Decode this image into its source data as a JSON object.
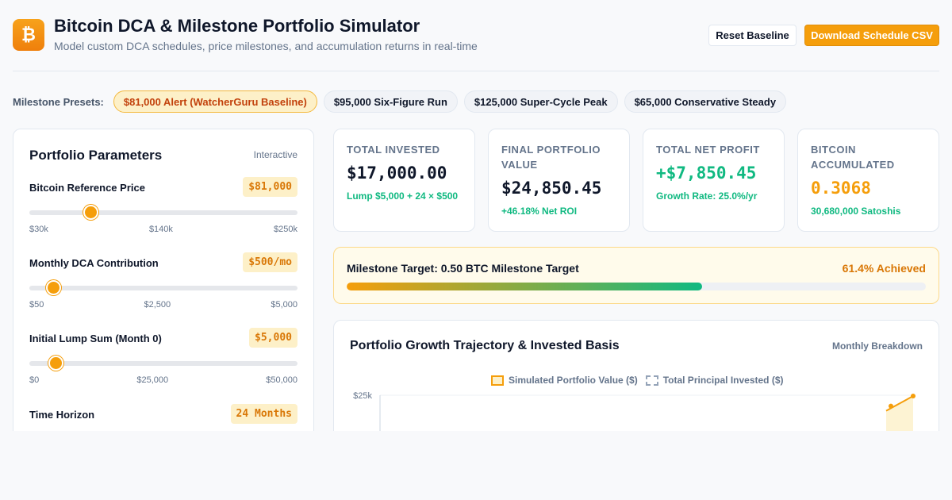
{
  "header": {
    "logo_glyph": "₿",
    "title": "Bitcoin DCA & Milestone Portfolio Simulator",
    "subtitle": "Model custom DCA schedules, price milestones, and accumulation returns in real-time",
    "reset_label": "Reset Baseline",
    "download_label": "Download Schedule CSV"
  },
  "presets": {
    "label": "Milestone Presets:",
    "items": [
      {
        "label": "$81,000 Alert (WatcherGuru Baseline)",
        "active": true
      },
      {
        "label": "$95,000 Six-Figure Run",
        "active": false
      },
      {
        "label": "$125,000 Super-Cycle Peak",
        "active": false
      },
      {
        "label": "$65,000 Conservative Steady",
        "active": false
      }
    ]
  },
  "params": {
    "title": "Portfolio Parameters",
    "badge": "Interactive",
    "items": [
      {
        "label": "Bitcoin Reference Price",
        "value": "$81,000",
        "fraction": 0.23,
        "ticks": [
          "$30k",
          "$140k",
          "$250k"
        ]
      },
      {
        "label": "Monthly DCA Contribution",
        "value": "$500/mo",
        "fraction": 0.09,
        "ticks": [
          "$50",
          "$2,500",
          "$5,000"
        ]
      },
      {
        "label": "Initial Lump Sum (Month 0)",
        "value": "$5,000",
        "fraction": 0.1,
        "ticks": [
          "$0",
          "$25,000",
          "$50,000"
        ]
      },
      {
        "label": "Time Horizon",
        "value": "24 Months"
      }
    ]
  },
  "stats": [
    {
      "label": "Total Invested",
      "value": "$17,000.00",
      "sub": "Lump $5,000 + 24 × $500",
      "color": "#0f172a"
    },
    {
      "label": "Final Portfolio Value",
      "value": "$24,850.45",
      "sub": "+46.18% Net ROI",
      "color": "#0f172a"
    },
    {
      "label": "Total Net Profit",
      "value": "+$7,850.45",
      "sub": "Growth Rate: 25.0%/yr",
      "color": "#10b981"
    },
    {
      "label": "Bitcoin Accumulated",
      "value": "0.3068",
      "sub": "30,680,000 Satoshis",
      "color": "#f59e0b"
    }
  ],
  "milestone": {
    "label": "Milestone Target: 0.50 BTC Milestone Target",
    "pct_label": "61.4% Achieved",
    "fraction": 0.614
  },
  "chart": {
    "title": "Portfolio Growth Trajectory & Invested Basis",
    "badge": "Monthly Breakdown",
    "legend": [
      "Simulated Portfolio Value ($)",
      "Total Principal Invested ($)"
    ]
  },
  "chart_data": {
    "type": "area",
    "title": "Portfolio Growth Trajectory & Invested Basis",
    "series": [
      {
        "name": "Simulated Portfolio Value ($)",
        "points": [
          [
            23,
            23000
          ],
          [
            24,
            24850.45
          ]
        ]
      },
      {
        "name": "Total Principal Invested ($)",
        "points": []
      }
    ],
    "y_tick_labels": [
      "$25k"
    ],
    "y_ticks": [
      25000
    ],
    "colors": {
      "value": "#f59e0b",
      "principal": "#94a3b8"
    }
  }
}
